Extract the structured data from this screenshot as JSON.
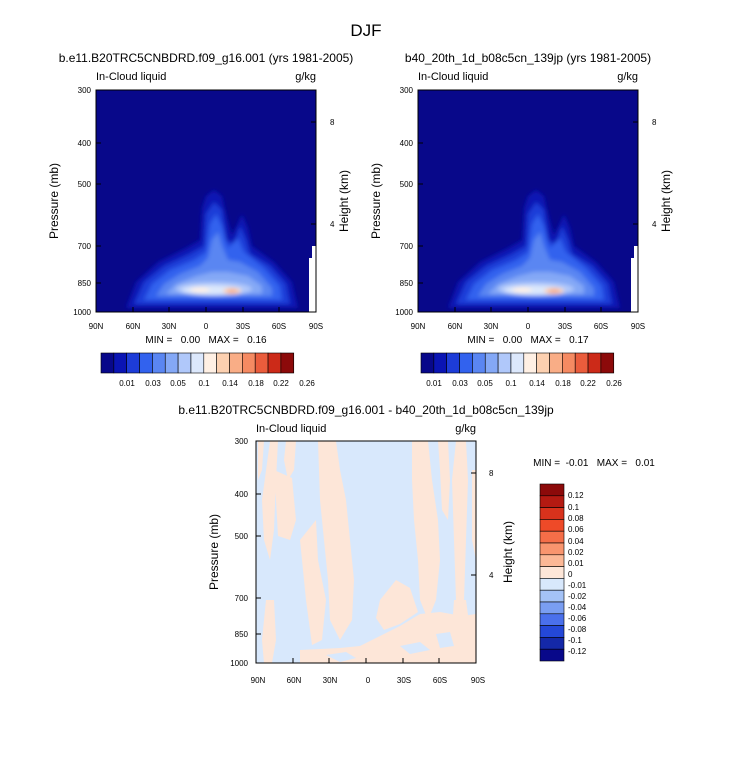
{
  "figure": {
    "title": "DJF"
  },
  "chart_data": [
    {
      "type": "heatmap",
      "title": "b.e11.B20TRC5CNBDRD.f09_g16.001 (yrs 1981-2005)",
      "subtitle_left": "In-Cloud liquid",
      "subtitle_right": "g/kg",
      "ylabel": "Pressure (mb)",
      "ylabel_right": "Height (km)",
      "x_ticks": [
        "90N",
        "60N",
        "30N",
        "0",
        "30S",
        "60S",
        "90S"
      ],
      "y_ticks": [
        "300",
        "400",
        "500",
        "700",
        "850",
        "1000"
      ],
      "y_ticks_right": [
        "8",
        "4"
      ],
      "ylim": [
        1000,
        300
      ],
      "stats": "MIN =   0.00   MAX =   0.16",
      "min": 0.0,
      "max": 0.16,
      "peak": {
        "lat": -20,
        "pressure": 880,
        "value": 0.16
      },
      "colorbar_labels": [
        "0.01",
        "0.03",
        "0.05",
        "0.1",
        "0.14",
        "0.18",
        "0.22",
        "0.26"
      ]
    },
    {
      "type": "heatmap",
      "title": "b40_20th_1d_b08c5cn_139jp (yrs 1981-2005)",
      "subtitle_left": "In-Cloud liquid",
      "subtitle_right": "g/kg",
      "ylabel": "Pressure (mb)",
      "ylabel_right": "Height (km)",
      "x_ticks": [
        "90N",
        "60N",
        "30N",
        "0",
        "30S",
        "60S",
        "90S"
      ],
      "y_ticks": [
        "300",
        "400",
        "500",
        "700",
        "850",
        "1000"
      ],
      "y_ticks_right": [
        "8",
        "4"
      ],
      "ylim": [
        1000,
        300
      ],
      "stats": "MIN =   0.00   MAX =   0.17",
      "min": 0.0,
      "max": 0.17,
      "peak": {
        "lat": -20,
        "pressure": 880,
        "value": 0.17
      },
      "colorbar_labels": [
        "0.01",
        "0.03",
        "0.05",
        "0.1",
        "0.14",
        "0.18",
        "0.22",
        "0.26"
      ]
    },
    {
      "type": "heatmap",
      "title": "b.e11.B20TRC5CNBDRD.f09_g16.001 - b40_20th_1d_b08c5cn_139jp",
      "subtitle_left": "In-Cloud liquid",
      "subtitle_right": "g/kg",
      "ylabel": "Pressure (mb)",
      "ylabel_right": "Height (km)",
      "x_ticks": [
        "90N",
        "60N",
        "30N",
        "0",
        "30S",
        "60S",
        "90S"
      ],
      "y_ticks": [
        "300",
        "400",
        "500",
        "700",
        "850",
        "1000"
      ],
      "y_ticks_right": [
        "8",
        "4"
      ],
      "ylim": [
        1000,
        300
      ],
      "stats": "MIN =  -0.01   MAX =   0.01",
      "min": -0.01,
      "max": 0.01,
      "colorbar_labels": [
        "0.12",
        "0.1",
        "0.08",
        "0.06",
        "0.04",
        "0.02",
        "0.01",
        "0",
        "-0.01",
        "-0.02",
        "-0.04",
        "-0.06",
        "-0.08",
        "-0.1",
        "-0.12"
      ]
    }
  ],
  "colors": {
    "plot_background": "#08088a",
    "sequential_scale": [
      "#08088a",
      "#0a14b4",
      "#1d3cd8",
      "#3262ee",
      "#5a86f2",
      "#84a8f6",
      "#b0c8fa",
      "#dce8fc",
      "#fff0e4",
      "#fcd0b0",
      "#f9ad86",
      "#f58a62",
      "#ea5c3c",
      "#cc2a18",
      "#8c0a0a"
    ],
    "diverging_scale": [
      "#8c0a0a",
      "#b41a12",
      "#d8321c",
      "#ee4a28",
      "#f56e48",
      "#f9956e",
      "#fcb896",
      "#fde6d8",
      "#d8e8fc",
      "#a4c2f6",
      "#7a9ef2",
      "#4a70ec",
      "#2448d8",
      "#1428a8",
      "#08088a"
    ],
    "diff_positive": "#fde6d8",
    "diff_negative": "#d8e8fc"
  }
}
